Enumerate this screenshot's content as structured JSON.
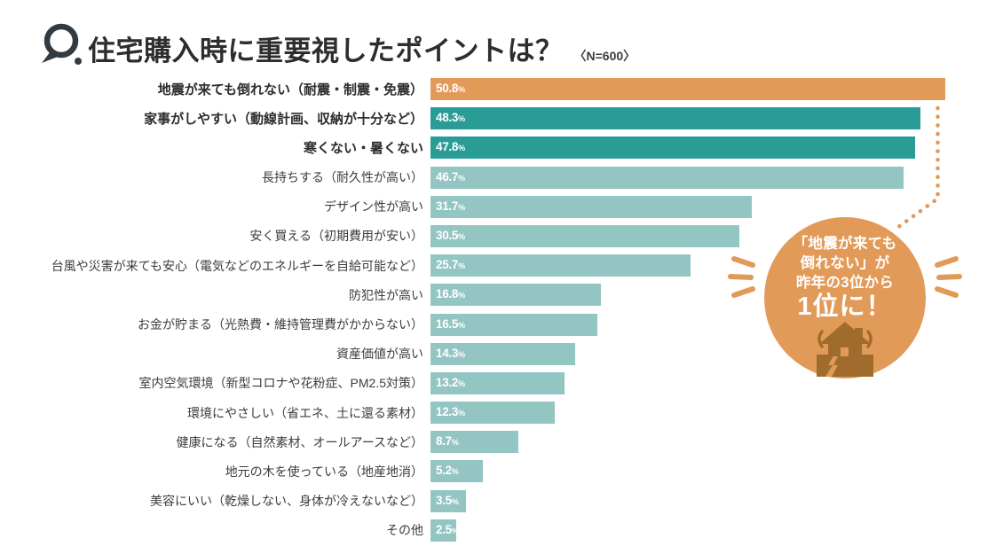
{
  "header": {
    "q_mark": "Q.",
    "title": "住宅購入時に重要視したポイントは？",
    "sample_size": "〈N=600〉"
  },
  "chart_data": {
    "type": "bar",
    "orientation": "horizontal",
    "unit": "%",
    "xlim": [
      0,
      52
    ],
    "grid": false,
    "value_labels": "inside-left, white",
    "bars": [
      {
        "label": "地震が来ても倒れない（耐震・制震・免震）",
        "value": 50.8,
        "value_label": "50.8",
        "color_key": "highlight_orange",
        "emphasis": true
      },
      {
        "label": "家事がしやすい（動線計画、収納が十分など）",
        "value": 48.3,
        "value_label": "48.3",
        "color_key": "teal_dark",
        "emphasis": true
      },
      {
        "label": "寒くない・暑くない",
        "value": 47.8,
        "value_label": "47.8",
        "color_key": "teal_dark",
        "emphasis": true
      },
      {
        "label": "長持ちする（耐久性が高い）",
        "value": 46.7,
        "value_label": "46.7",
        "color_key": "teal_light",
        "emphasis": false
      },
      {
        "label": "デザイン性が高い",
        "value": 31.7,
        "value_label": "31.7",
        "color_key": "teal_light",
        "emphasis": false
      },
      {
        "label": "安く買える（初期費用が安い）",
        "value": 30.5,
        "value_label": "30.5",
        "color_key": "teal_light",
        "emphasis": false
      },
      {
        "label": "台風や災害が来ても安心（電気などのエネルギーを自給可能など）",
        "value": 25.7,
        "value_label": "25.7",
        "color_key": "teal_light",
        "emphasis": false
      },
      {
        "label": "防犯性が高い",
        "value": 16.8,
        "value_label": "16.8",
        "color_key": "teal_light",
        "emphasis": false
      },
      {
        "label": "お金が貯まる（光熱費・維持管理費がかからない）",
        "value": 16.5,
        "value_label": "16.5",
        "color_key": "teal_light",
        "emphasis": false
      },
      {
        "label": "資産価値が高い",
        "value": 14.3,
        "value_label": "14.3",
        "color_key": "teal_light",
        "emphasis": false
      },
      {
        "label": "室内空気環境（新型コロナや花粉症、PM2.5対策）",
        "value": 13.2,
        "value_label": "13.2",
        "color_key": "teal_light",
        "emphasis": false
      },
      {
        "label": "環境にやさしい（省エネ、土に還る素材）",
        "value": 12.3,
        "value_label": "12.3",
        "color_key": "teal_light",
        "emphasis": false
      },
      {
        "label": "健康になる（自然素材、オールアースなど）",
        "value": 8.7,
        "value_label": "8.7",
        "color_key": "teal_light",
        "emphasis": false
      },
      {
        "label": "地元の木を使っている（地産地消）",
        "value": 5.2,
        "value_label": "5.2",
        "color_key": "teal_light",
        "emphasis": false
      },
      {
        "label": "美容にいい（乾燥しない、身体が冷えないなど）",
        "value": 3.5,
        "value_label": "3.5",
        "color_key": "teal_light",
        "emphasis": false
      },
      {
        "label": "その他",
        "value": 2.5,
        "value_label": "2.5",
        "color_key": "teal_light",
        "emphasis": false
      }
    ]
  },
  "callout": {
    "line1": "「地震が来ても",
    "line2": "倒れない」が",
    "line3": "昨年の3位から",
    "emphasis": "1位に！",
    "icon": "earthquake-house-icon"
  },
  "colors": {
    "highlight_orange": "#E29A58",
    "teal_dark": "#2A9C96",
    "teal_light": "#93C5C2",
    "icon_brown": "#A06C2E",
    "title_text": "#2D2D2D",
    "label_text": "#3C3C3C",
    "value_text": "#FFFFFF"
  }
}
